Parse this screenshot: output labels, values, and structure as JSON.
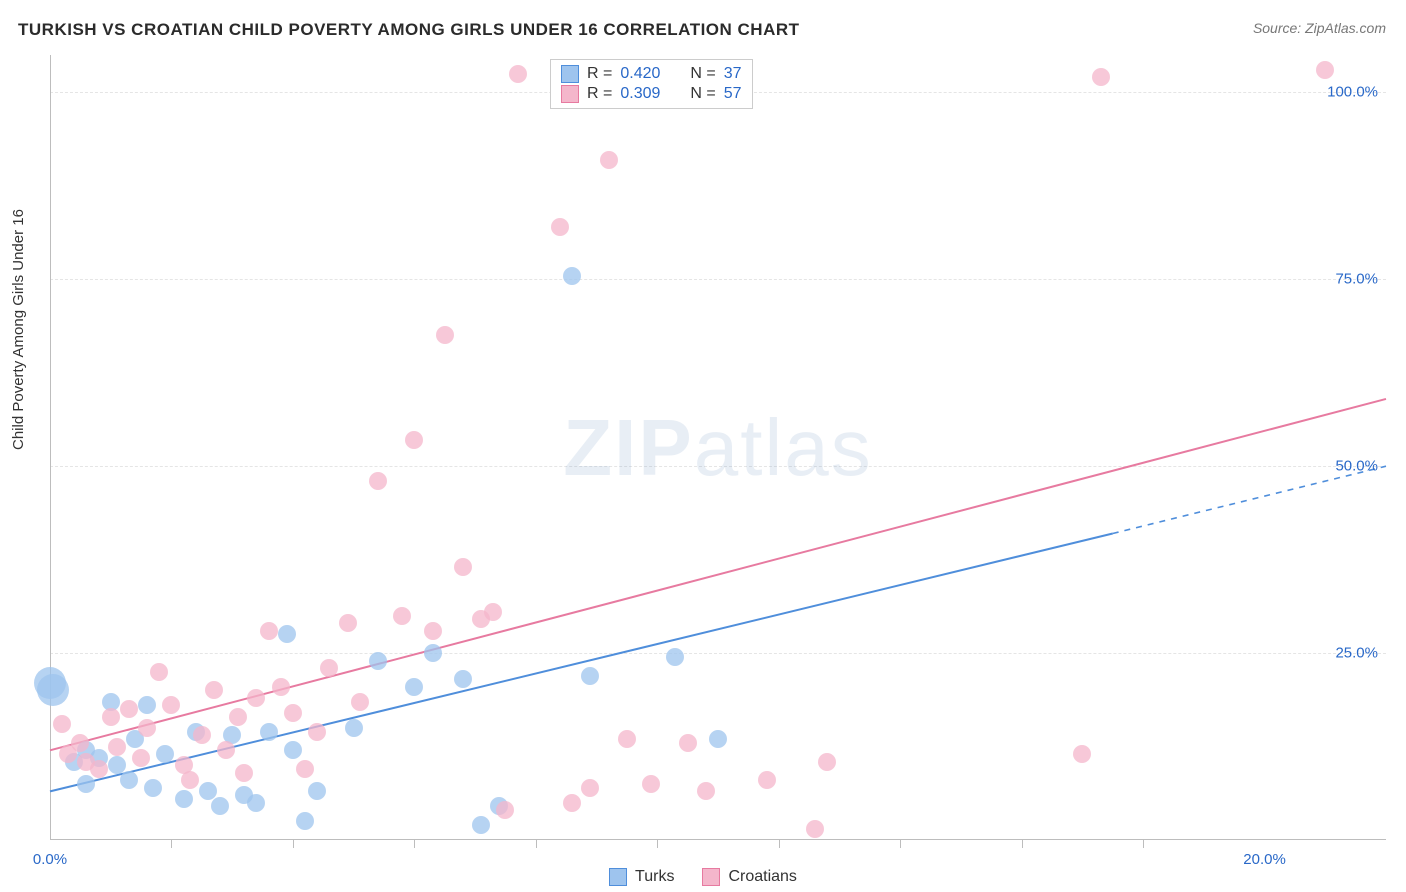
{
  "title": "TURKISH VS CROATIAN CHILD POVERTY AMONG GIRLS UNDER 16 CORRELATION CHART",
  "source": "Source: ZipAtlas.com",
  "y_axis_label": "Child Poverty Among Girls Under 16",
  "watermark_bold": "ZIP",
  "watermark_rest": "atlas",
  "chart": {
    "type": "scatter",
    "xlim": [
      0,
      22
    ],
    "ylim": [
      0,
      105
    ],
    "x_ticks_major": [
      0,
      20
    ],
    "x_ticks_minor": [
      2,
      4,
      6,
      8,
      10,
      12,
      14,
      16,
      18
    ],
    "y_ticks": [
      25,
      50,
      75,
      100
    ],
    "x_tick_labels": {
      "0": "0.0%",
      "20": "20.0%"
    },
    "y_tick_labels": {
      "25": "25.0%",
      "50": "50.0%",
      "75": "75.0%",
      "100": "100.0%"
    },
    "background_color": "#ffffff",
    "grid_color": "#e5e5e5",
    "axis_color": "#bdbdbd",
    "label_color": "#2968c8",
    "marker_radius": 9,
    "marker_opacity_fill": 0.2,
    "big_marker_radius": 16,
    "series": [
      {
        "name": "Turks",
        "color_stroke": "#4f8edb",
        "color_fill": "#9ec4ee",
        "R": "0.420",
        "N": "37",
        "trend": {
          "x1": 0,
          "y1": 6.5,
          "x2": 17.5,
          "y2": 41.0,
          "dash_to_x": 22,
          "dash_to_y": 50.0,
          "width": 2
        },
        "points": [
          [
            0.0,
            21.0,
            16
          ],
          [
            0.05,
            20.0,
            16
          ],
          [
            0.4,
            10.5,
            9
          ],
          [
            0.6,
            12.0,
            9
          ],
          [
            0.6,
            7.5,
            9
          ],
          [
            0.8,
            11.0,
            9
          ],
          [
            1.0,
            18.5,
            9
          ],
          [
            1.1,
            10.0,
            9
          ],
          [
            1.3,
            8.0,
            9
          ],
          [
            1.4,
            13.5,
            9
          ],
          [
            1.6,
            18.0,
            9
          ],
          [
            1.7,
            7.0,
            9
          ],
          [
            1.9,
            11.5,
            9
          ],
          [
            2.2,
            5.5,
            9
          ],
          [
            2.4,
            14.5,
            9
          ],
          [
            2.6,
            6.5,
            9
          ],
          [
            2.8,
            4.5,
            9
          ],
          [
            3.0,
            14.0,
            9
          ],
          [
            3.2,
            6.0,
            9
          ],
          [
            3.4,
            5.0,
            9
          ],
          [
            3.6,
            14.5,
            9
          ],
          [
            3.9,
            27.5,
            9
          ],
          [
            4.0,
            12.0,
            9
          ],
          [
            4.2,
            2.5,
            9
          ],
          [
            4.4,
            6.5,
            9
          ],
          [
            5.0,
            15.0,
            9
          ],
          [
            5.4,
            24.0,
            9
          ],
          [
            6.0,
            20.5,
            9
          ],
          [
            6.3,
            25.0,
            9
          ],
          [
            6.8,
            21.5,
            9
          ],
          [
            7.1,
            2.0,
            9
          ],
          [
            7.4,
            4.5,
            9
          ],
          [
            8.6,
            75.5,
            9
          ],
          [
            8.9,
            22.0,
            9
          ],
          [
            10.3,
            24.5,
            9
          ],
          [
            11.0,
            13.5,
            9
          ]
        ]
      },
      {
        "name": "Croatians",
        "color_stroke": "#e77aa0",
        "color_fill": "#f4b6cb",
        "R": "0.309",
        "N": "57",
        "trend": {
          "x1": 0,
          "y1": 12.0,
          "x2": 22,
          "y2": 59.0,
          "width": 2
        },
        "points": [
          [
            0.2,
            15.5,
            9
          ],
          [
            0.3,
            11.5,
            9
          ],
          [
            0.5,
            13.0,
            9
          ],
          [
            0.6,
            10.5,
            9
          ],
          [
            0.8,
            9.5,
            9
          ],
          [
            1.0,
            16.5,
            9
          ],
          [
            1.1,
            12.5,
            9
          ],
          [
            1.3,
            17.5,
            9
          ],
          [
            1.5,
            11.0,
            9
          ],
          [
            1.6,
            15.0,
            9
          ],
          [
            1.8,
            22.5,
            9
          ],
          [
            2.0,
            18.0,
            9
          ],
          [
            2.2,
            10.0,
            9
          ],
          [
            2.3,
            8.0,
            9
          ],
          [
            2.5,
            14.0,
            9
          ],
          [
            2.7,
            20.0,
            9
          ],
          [
            2.9,
            12.0,
            9
          ],
          [
            3.1,
            16.5,
            9
          ],
          [
            3.2,
            9.0,
            9
          ],
          [
            3.4,
            19.0,
            9
          ],
          [
            3.6,
            28.0,
            9
          ],
          [
            3.8,
            20.5,
            9
          ],
          [
            4.0,
            17.0,
            9
          ],
          [
            4.2,
            9.5,
            9
          ],
          [
            4.4,
            14.5,
            9
          ],
          [
            4.6,
            23.0,
            9
          ],
          [
            4.9,
            29.0,
            9
          ],
          [
            5.1,
            18.5,
            9
          ],
          [
            5.4,
            48.0,
            9
          ],
          [
            5.8,
            30.0,
            9
          ],
          [
            6.0,
            53.5,
            9
          ],
          [
            6.3,
            28.0,
            9
          ],
          [
            6.5,
            67.5,
            9
          ],
          [
            6.8,
            36.5,
            9
          ],
          [
            7.1,
            29.5,
            9
          ],
          [
            7.3,
            30.5,
            9
          ],
          [
            7.5,
            4.0,
            9
          ],
          [
            7.7,
            102.5,
            9
          ],
          [
            8.4,
            82.0,
            9
          ],
          [
            8.6,
            5.0,
            9
          ],
          [
            8.9,
            7.0,
            9
          ],
          [
            9.2,
            91.0,
            9
          ],
          [
            9.5,
            13.5,
            9
          ],
          [
            9.9,
            7.5,
            9
          ],
          [
            10.5,
            13.0,
            9
          ],
          [
            10.8,
            6.5,
            9
          ],
          [
            11.8,
            8.0,
            9
          ],
          [
            12.6,
            1.5,
            9
          ],
          [
            12.8,
            10.5,
            9
          ],
          [
            17.0,
            11.5,
            9
          ],
          [
            17.3,
            102.0,
            9
          ],
          [
            21.0,
            103.0,
            9
          ]
        ]
      }
    ]
  },
  "legend": {
    "items": [
      {
        "label": "Turks",
        "fill": "#9ec4ee",
        "stroke": "#4f8edb"
      },
      {
        "label": "Croatians",
        "fill": "#f4b6cb",
        "stroke": "#e77aa0"
      }
    ]
  }
}
